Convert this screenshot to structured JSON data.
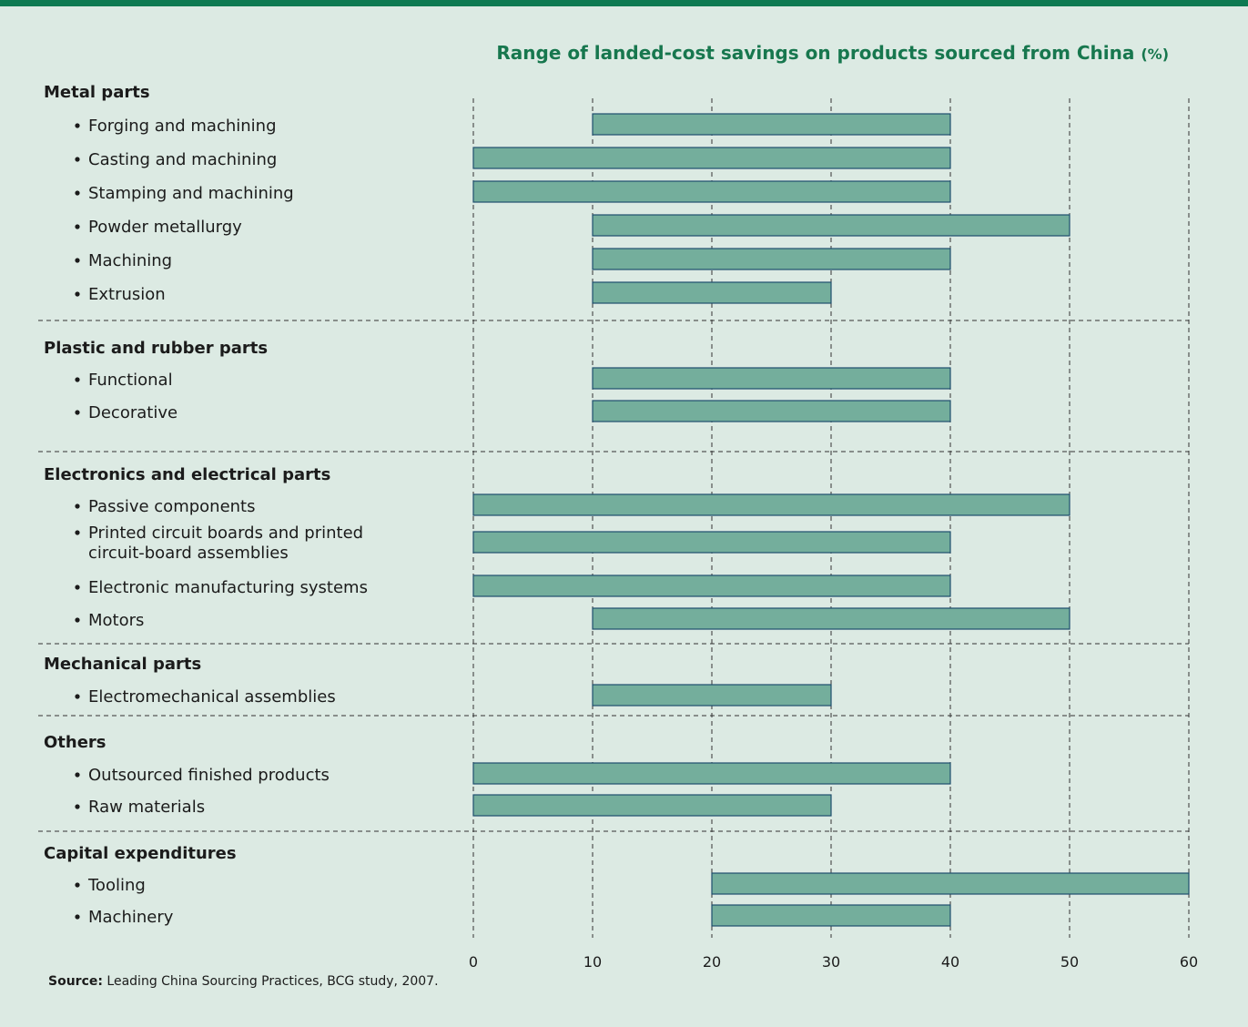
{
  "chart_data": {
    "type": "bar",
    "orientation": "horizontal-range",
    "title": "Range of landed-cost savings on products sourced from China",
    "title_unit": "(%)",
    "xlim": [
      0,
      60
    ],
    "xticks": [
      0,
      10,
      20,
      30,
      40,
      50,
      60
    ],
    "grid": "vertical dashed",
    "bar_color": "#74ae9c",
    "bar_edge_color": "#1f4e6e",
    "groups": [
      {
        "name": "Metal parts",
        "items": [
          {
            "label": "Forging and machining",
            "min": 10,
            "max": 40
          },
          {
            "label": "Casting and machining",
            "min": 0,
            "max": 40
          },
          {
            "label": "Stamping and machining",
            "min": 0,
            "max": 40
          },
          {
            "label": "Powder metallurgy",
            "min": 10,
            "max": 50
          },
          {
            "label": "Machining",
            "min": 10,
            "max": 40
          },
          {
            "label": "Extrusion",
            "min": 10,
            "max": 30
          }
        ]
      },
      {
        "name": "Plastic and rubber parts",
        "items": [
          {
            "label": "Functional",
            "min": 10,
            "max": 40
          },
          {
            "label": "Decorative",
            "min": 10,
            "max": 40
          }
        ]
      },
      {
        "name": "Electronics and electrical parts",
        "items": [
          {
            "label": "Passive components",
            "min": 0,
            "max": 50
          },
          {
            "label": "Printed circuit boards and printed",
            "label2": "circuit-board assemblies",
            "min": 0,
            "max": 40
          },
          {
            "label": "Electronic manufacturing systems",
            "min": 0,
            "max": 40
          },
          {
            "label": "Motors",
            "min": 10,
            "max": 50
          }
        ]
      },
      {
        "name": "Mechanical parts",
        "items": [
          {
            "label": "Electromechanical assemblies",
            "min": 10,
            "max": 30
          }
        ]
      },
      {
        "name": "Others",
        "items": [
          {
            "label": "Outsourced finished products",
            "min": 0,
            "max": 40
          },
          {
            "label": "Raw materials",
            "min": 0,
            "max": 30
          }
        ]
      },
      {
        "name": "Capital expenditures",
        "items": [
          {
            "label": "Tooling",
            "min": 20,
            "max": 60
          },
          {
            "label": "Machinery",
            "min": 20,
            "max": 40
          }
        ]
      }
    ]
  },
  "source": {
    "label": "Source:",
    "text": "Leading China Sourcing Practices, BCG study, 2007."
  }
}
